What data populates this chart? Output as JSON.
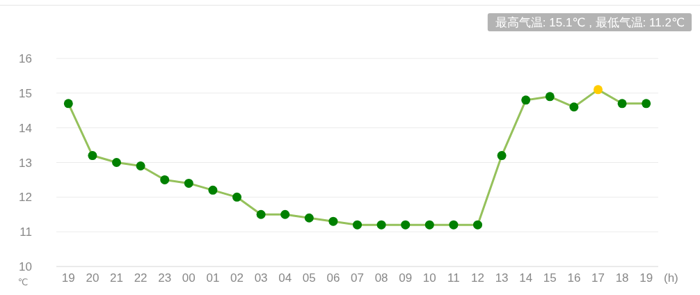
{
  "chart_data": {
    "type": "line",
    "categories": [
      "19",
      "20",
      "21",
      "22",
      "23",
      "00",
      "01",
      "02",
      "03",
      "04",
      "05",
      "06",
      "07",
      "08",
      "09",
      "10",
      "11",
      "12",
      "13",
      "14",
      "15",
      "16",
      "17",
      "18",
      "19"
    ],
    "ylim": [
      10,
      16
    ],
    "yticks": [
      10,
      11,
      12,
      13,
      14,
      15,
      16
    ],
    "ylabel": "℃",
    "xlabel": "(h)",
    "grid": "y",
    "marker": "circle",
    "line_style": "solid",
    "annotations": [
      "最高气温: 15.1℃ , 最低气温: 11.2℃"
    ],
    "series": [
      {
        "color": "#95c15b",
        "colors": [
          "#008000",
          "#008000",
          "#008000",
          "#008000",
          "#008000",
          "#008000",
          "#008000",
          "#008000",
          "#008000",
          "#008000",
          "#008000",
          "#008000",
          "#008000",
          "#008000",
          "#008000",
          "#008000",
          "#008000",
          "#008000",
          "#008000",
          "#008000",
          "#008000",
          "#008000",
          "#ffcc00",
          "#008000",
          "#008000"
        ],
        "values": [
          14.7,
          13.2,
          13.0,
          12.9,
          12.5,
          12.4,
          12.2,
          12.0,
          11.5,
          11.5,
          11.4,
          11.3,
          11.2,
          11.2,
          11.2,
          11.2,
          11.2,
          11.2,
          13.2,
          14.8,
          14.9,
          14.6,
          15.1,
          14.7,
          14.7
        ]
      }
    ]
  }
}
